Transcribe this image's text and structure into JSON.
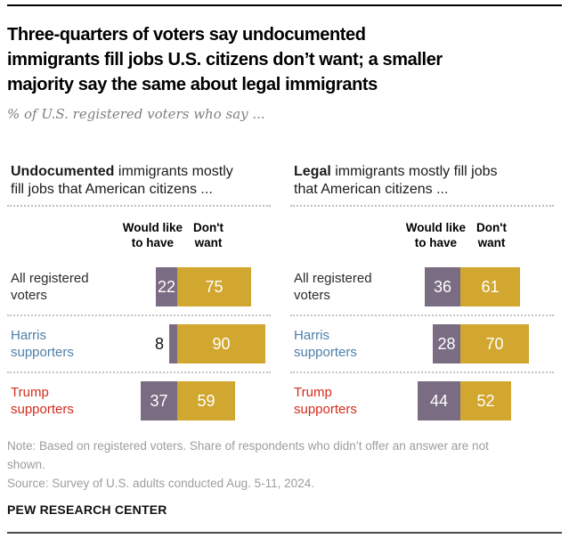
{
  "header": {
    "title_lines": [
      "Three-quarters of voters say undocumented",
      "immigrants fill jobs U.S. citizens don’t want; a smaller",
      "majority say the same about legal immigrants"
    ],
    "subtitle": "% of U.S. registered voters who say ..."
  },
  "panels": [
    {
      "heading_bold": "Undocumented",
      "heading_rest_line1": " immigrants mostly",
      "heading_line2": "fill jobs that American citizens ...",
      "col1_line1": "Would like",
      "col1_line2": "to have",
      "col2_line1": "Don't",
      "col2_line2": "want"
    },
    {
      "heading_bold": "Legal",
      "heading_rest_line1": " immigrants mostly fill jobs",
      "heading_line2": "that American citizens ...",
      "col1_line1": "Would like",
      "col1_line2": "to have",
      "col2_line1": "Don't",
      "col2_line2": "want"
    }
  ],
  "chart_data": [
    {
      "type": "bar",
      "orientation": "horizontal",
      "stacked": true,
      "title": "Undocumented immigrants mostly fill jobs that American citizens ...",
      "categories": [
        "All registered voters",
        "Harris supporters",
        "Trump supporters"
      ],
      "category_label_lines": [
        [
          "All registered",
          "voters"
        ],
        [
          "Harris",
          "supporters"
        ],
        [
          "Trump",
          "supporters"
        ]
      ],
      "category_colors": [
        "#2b2b2b",
        "#4d7fa9",
        "#d42b1e"
      ],
      "series": [
        {
          "name": "Would like to have",
          "values": [
            22,
            8,
            37
          ],
          "color": "#7a6c82"
        },
        {
          "name": "Don't want",
          "values": [
            75,
            90,
            59
          ],
          "color": "#d1a730"
        }
      ],
      "value_range": [
        0,
        100
      ],
      "grid": false,
      "legend_position": "column headers above bars",
      "value_labels": "on segments; white inside, black outside when segment < 10"
    },
    {
      "type": "bar",
      "orientation": "horizontal",
      "stacked": true,
      "title": "Legal immigrants mostly fill jobs that American citizens ...",
      "categories": [
        "All registered voters",
        "Harris supporters",
        "Trump supporters"
      ],
      "category_label_lines": [
        [
          "All registered",
          "voters"
        ],
        [
          "Harris",
          "supporters"
        ],
        [
          "Trump",
          "supporters"
        ]
      ],
      "category_colors": [
        "#2b2b2b",
        "#4d7fa9",
        "#d42b1e"
      ],
      "series": [
        {
          "name": "Would like to have",
          "values": [
            36,
            28,
            44
          ],
          "color": "#7a6c82"
        },
        {
          "name": "Don't want",
          "values": [
            61,
            70,
            52
          ],
          "color": "#d1a730"
        }
      ],
      "value_range": [
        0,
        100
      ],
      "grid": false,
      "legend_position": "column headers above bars",
      "value_labels": "on segments; white inside"
    }
  ],
  "footer": {
    "note_line1": "Note: Based on registered voters. Share of respondents who didn’t offer an answer are not",
    "note_line2": "shown.",
    "source": "Source: Survey of U.S. adults conducted Aug. 5-11, 2024.",
    "wordmark": "PEW RESEARCH CENTER"
  }
}
